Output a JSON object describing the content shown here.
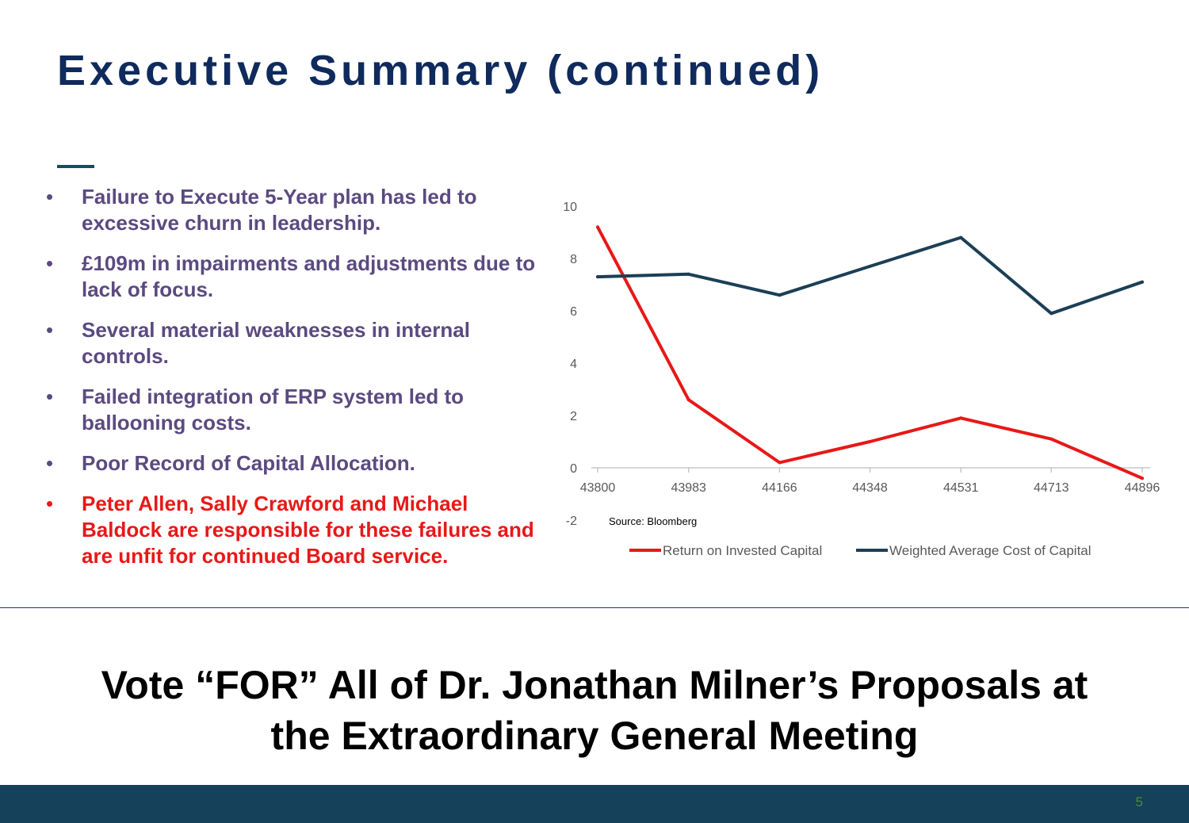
{
  "title": "Executive Summary (continued)",
  "bullets": [
    {
      "text": "Failure to Execute 5-Year plan has led to excessive churn in leadership.",
      "highlight": false
    },
    {
      "text": "£109m in impairments and adjustments due to lack of focus.",
      "highlight": false
    },
    {
      "text": "Several material weaknesses in internal controls.",
      "highlight": false
    },
    {
      "text": "Failed integration of ERP system led to ballooning costs.",
      "highlight": false
    },
    {
      "text": "Poor Record of Capital Allocation.",
      "highlight": false
    },
    {
      "text": "Peter Allen, Sally Crawford and Michael Baldock are responsible for these failures and are unfit for continued Board service.",
      "highlight": true
    }
  ],
  "chart_data": {
    "type": "line",
    "x": [
      43800,
      43983,
      44166,
      44348,
      44531,
      44713,
      44896
    ],
    "series": [
      {
        "name": "Return on Invested Capital",
        "color": "#e81818",
        "values": [
          9.2,
          2.6,
          0.2,
          1.0,
          1.9,
          1.1,
          -0.4
        ]
      },
      {
        "name": "Weighted Average Cost of Capital",
        "color": "#1b3f56",
        "values": [
          7.3,
          7.4,
          6.6,
          7.7,
          8.8,
          5.9,
          7.1
        ]
      }
    ],
    "yticks": [
      -2,
      0,
      2,
      4,
      6,
      8,
      10
    ],
    "ylim": [
      -2,
      10
    ],
    "source": "Source: Bloomberg",
    "legend_position": "bottom",
    "grid": false
  },
  "vote": {
    "line1": "Vote “FOR” All of Dr. Jonathan Milner’s Proposals at",
    "line2": "the Extraordinary General Meeting"
  },
  "page_number": "5"
}
